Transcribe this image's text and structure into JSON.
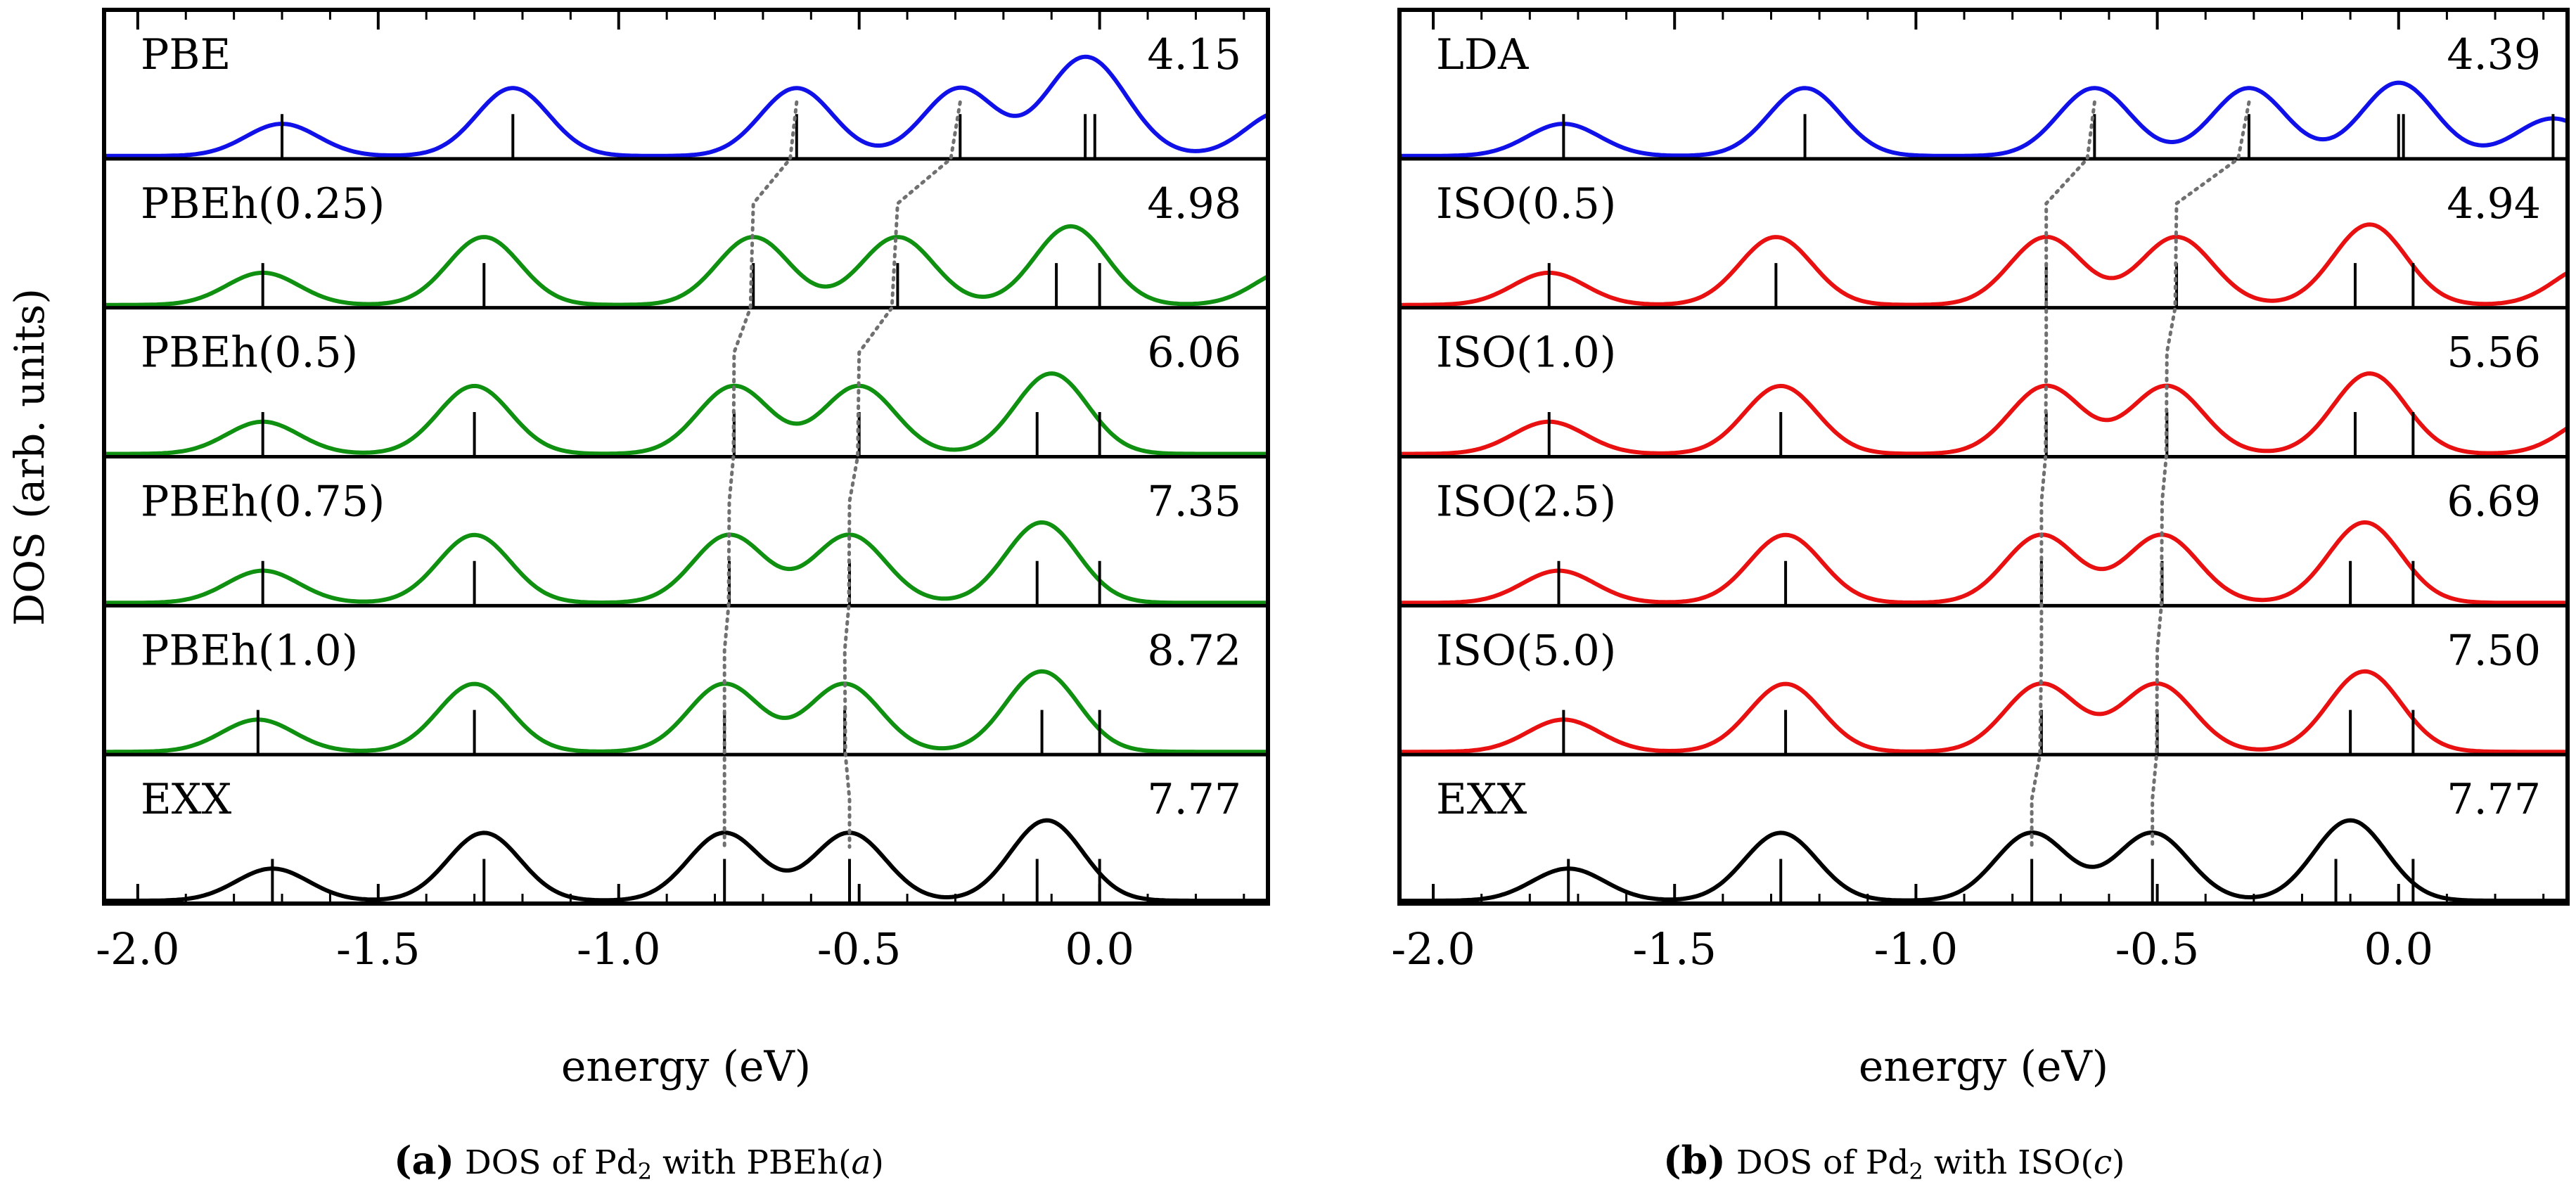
{
  "ylabel": "DOS (arb. units)",
  "chart_data": [
    {
      "type": "line",
      "caption": {
        "label": "(a)",
        "pre": "DOS of Pd",
        "sub": "2",
        "mid": " with PBEh(",
        "italic": "a",
        "post": ")"
      },
      "xlabel": "energy (eV)",
      "xlim": [
        -2.07,
        0.35
      ],
      "xticks": [
        -2.0,
        -1.5,
        -1.0,
        -0.5,
        0.0
      ],
      "xtick_labels": [
        "-2.0",
        "-1.5",
        "-1.0",
        "-0.5",
        "0.0"
      ],
      "ylabel": "DOS (arb. units)",
      "grid": false,
      "series": [
        {
          "name": "PBE",
          "value": "4.15",
          "color": "#1010e8",
          "peaks": [
            [
              -1.7,
              0.36
            ],
            [
              -1.22,
              0.76
            ],
            [
              -0.63,
              0.76
            ],
            [
              -0.29,
              0.76
            ],
            [
              -0.05,
              0.8
            ],
            [
              0.02,
              0.42
            ],
            [
              0.38,
              0.5
            ]
          ],
          "sticks": [
            -1.7,
            -1.22,
            -0.63,
            -0.29,
            -0.03,
            -0.01
          ]
        },
        {
          "name": "PBEh(0.25)",
          "value": "4.98",
          "color": "#109010",
          "peaks": [
            [
              -1.74,
              0.36
            ],
            [
              -1.28,
              0.76
            ],
            [
              -0.72,
              0.76
            ],
            [
              -0.42,
              0.76
            ],
            [
              -0.06,
              0.88
            ],
            [
              0.4,
              0.4
            ]
          ],
          "sticks": [
            -1.74,
            -1.28,
            -0.72,
            -0.42,
            -0.09,
            0.0
          ]
        },
        {
          "name": "PBEh(0.5)",
          "value": "6.06",
          "color": "#109010",
          "peaks": [
            [
              -1.74,
              0.36
            ],
            [
              -1.3,
              0.76
            ],
            [
              -0.76,
              0.76
            ],
            [
              -0.5,
              0.76
            ],
            [
              -0.1,
              0.9
            ]
          ],
          "sticks": [
            -1.74,
            -1.3,
            -0.76,
            -0.5,
            -0.13,
            0.0
          ]
        },
        {
          "name": "PBEh(0.75)",
          "value": "7.35",
          "color": "#109010",
          "peaks": [
            [
              -1.74,
              0.36
            ],
            [
              -1.3,
              0.76
            ],
            [
              -0.77,
              0.76
            ],
            [
              -0.52,
              0.76
            ],
            [
              -0.12,
              0.9
            ]
          ],
          "sticks": [
            -1.74,
            -1.3,
            -0.77,
            -0.52,
            -0.13,
            0.0
          ]
        },
        {
          "name": "PBEh(1.0)",
          "value": "8.72",
          "color": "#109010",
          "peaks": [
            [
              -1.75,
              0.36
            ],
            [
              -1.3,
              0.76
            ],
            [
              -0.78,
              0.76
            ],
            [
              -0.53,
              0.76
            ],
            [
              -0.12,
              0.9
            ]
          ],
          "sticks": [
            -1.75,
            -1.3,
            -0.78,
            -0.53,
            -0.12,
            0.0
          ]
        },
        {
          "name": "EXX",
          "value": "7.77",
          "color": "#000000",
          "peaks": [
            [
              -1.72,
              0.36
            ],
            [
              -1.28,
              0.76
            ],
            [
              -0.78,
              0.76
            ],
            [
              -0.52,
              0.76
            ],
            [
              -0.11,
              0.9
            ]
          ],
          "sticks": [
            -1.72,
            -1.28,
            -0.78,
            -0.52,
            -0.13,
            0.0
          ]
        }
      ],
      "dotted_trends": [
        [
          -0.63,
          -0.72,
          -0.76,
          -0.77,
          -0.78,
          -0.78
        ],
        [
          -0.29,
          -0.42,
          -0.5,
          -0.52,
          -0.53,
          -0.52
        ]
      ]
    },
    {
      "type": "line",
      "caption": {
        "label": "(b)",
        "pre": "DOS of Pd",
        "sub": "2",
        "mid": " with ISO(",
        "italic": "c",
        "post": ")"
      },
      "xlabel": "energy (eV)",
      "xlim": [
        -2.07,
        0.35
      ],
      "xticks": [
        -2.0,
        -1.5,
        -1.0,
        -0.5,
        0.0
      ],
      "xtick_labels": [
        "-2.0",
        "-1.5",
        "-1.0",
        "-0.5",
        "0.0"
      ],
      "grid": false,
      "series": [
        {
          "name": "LDA",
          "value": "4.39",
          "color": "#1010e8",
          "peaks": [
            [
              -1.73,
              0.36
            ],
            [
              -1.23,
              0.76
            ],
            [
              -0.63,
              0.76
            ],
            [
              -0.31,
              0.76
            ],
            [
              0.0,
              0.82
            ],
            [
              0.32,
              0.42
            ]
          ],
          "sticks": [
            -1.73,
            -1.23,
            -0.63,
            -0.31,
            0.0,
            0.01,
            0.32
          ]
        },
        {
          "name": "ISO(0.5)",
          "value": "4.94",
          "color": "#e81010",
          "peaks": [
            [
              -1.76,
              0.36
            ],
            [
              -1.29,
              0.76
            ],
            [
              -0.73,
              0.76
            ],
            [
              -0.46,
              0.76
            ],
            [
              -0.06,
              0.9
            ],
            [
              0.4,
              0.45
            ]
          ],
          "sticks": [
            -1.76,
            -1.29,
            -0.73,
            -0.46,
            -0.09,
            0.03
          ]
        },
        {
          "name": "ISO(1.0)",
          "value": "5.56",
          "color": "#e81010",
          "peaks": [
            [
              -1.76,
              0.36
            ],
            [
              -1.28,
              0.76
            ],
            [
              -0.73,
              0.76
            ],
            [
              -0.48,
              0.76
            ],
            [
              -0.06,
              0.9
            ],
            [
              0.42,
              0.45
            ]
          ],
          "sticks": [
            -1.76,
            -1.28,
            -0.73,
            -0.48,
            -0.09,
            0.03
          ]
        },
        {
          "name": "ISO(2.5)",
          "value": "6.69",
          "color": "#e81010",
          "peaks": [
            [
              -1.74,
              0.36
            ],
            [
              -1.27,
              0.76
            ],
            [
              -0.74,
              0.76
            ],
            [
              -0.49,
              0.76
            ],
            [
              -0.07,
              0.9
            ]
          ],
          "sticks": [
            -1.74,
            -1.27,
            -0.74,
            -0.49,
            -0.1,
            0.03
          ]
        },
        {
          "name": "ISO(5.0)",
          "value": "7.50",
          "color": "#e81010",
          "peaks": [
            [
              -1.73,
              0.36
            ],
            [
              -1.27,
              0.76
            ],
            [
              -0.74,
              0.76
            ],
            [
              -0.5,
              0.76
            ],
            [
              -0.07,
              0.9
            ]
          ],
          "sticks": [
            -1.73,
            -1.27,
            -0.74,
            -0.5,
            -0.1,
            0.03
          ]
        },
        {
          "name": "EXX",
          "value": "7.77",
          "color": "#000000",
          "peaks": [
            [
              -1.72,
              0.36
            ],
            [
              -1.28,
              0.76
            ],
            [
              -0.76,
              0.76
            ],
            [
              -0.51,
              0.76
            ],
            [
              -0.1,
              0.9
            ]
          ],
          "sticks": [
            -1.72,
            -1.28,
            -0.76,
            -0.51,
            -0.13,
            0.03
          ]
        }
      ],
      "dotted_trends": [
        [
          -0.63,
          -0.73,
          -0.73,
          -0.74,
          -0.74,
          -0.76
        ],
        [
          -0.31,
          -0.46,
          -0.48,
          -0.49,
          -0.5,
          -0.51
        ]
      ]
    }
  ]
}
